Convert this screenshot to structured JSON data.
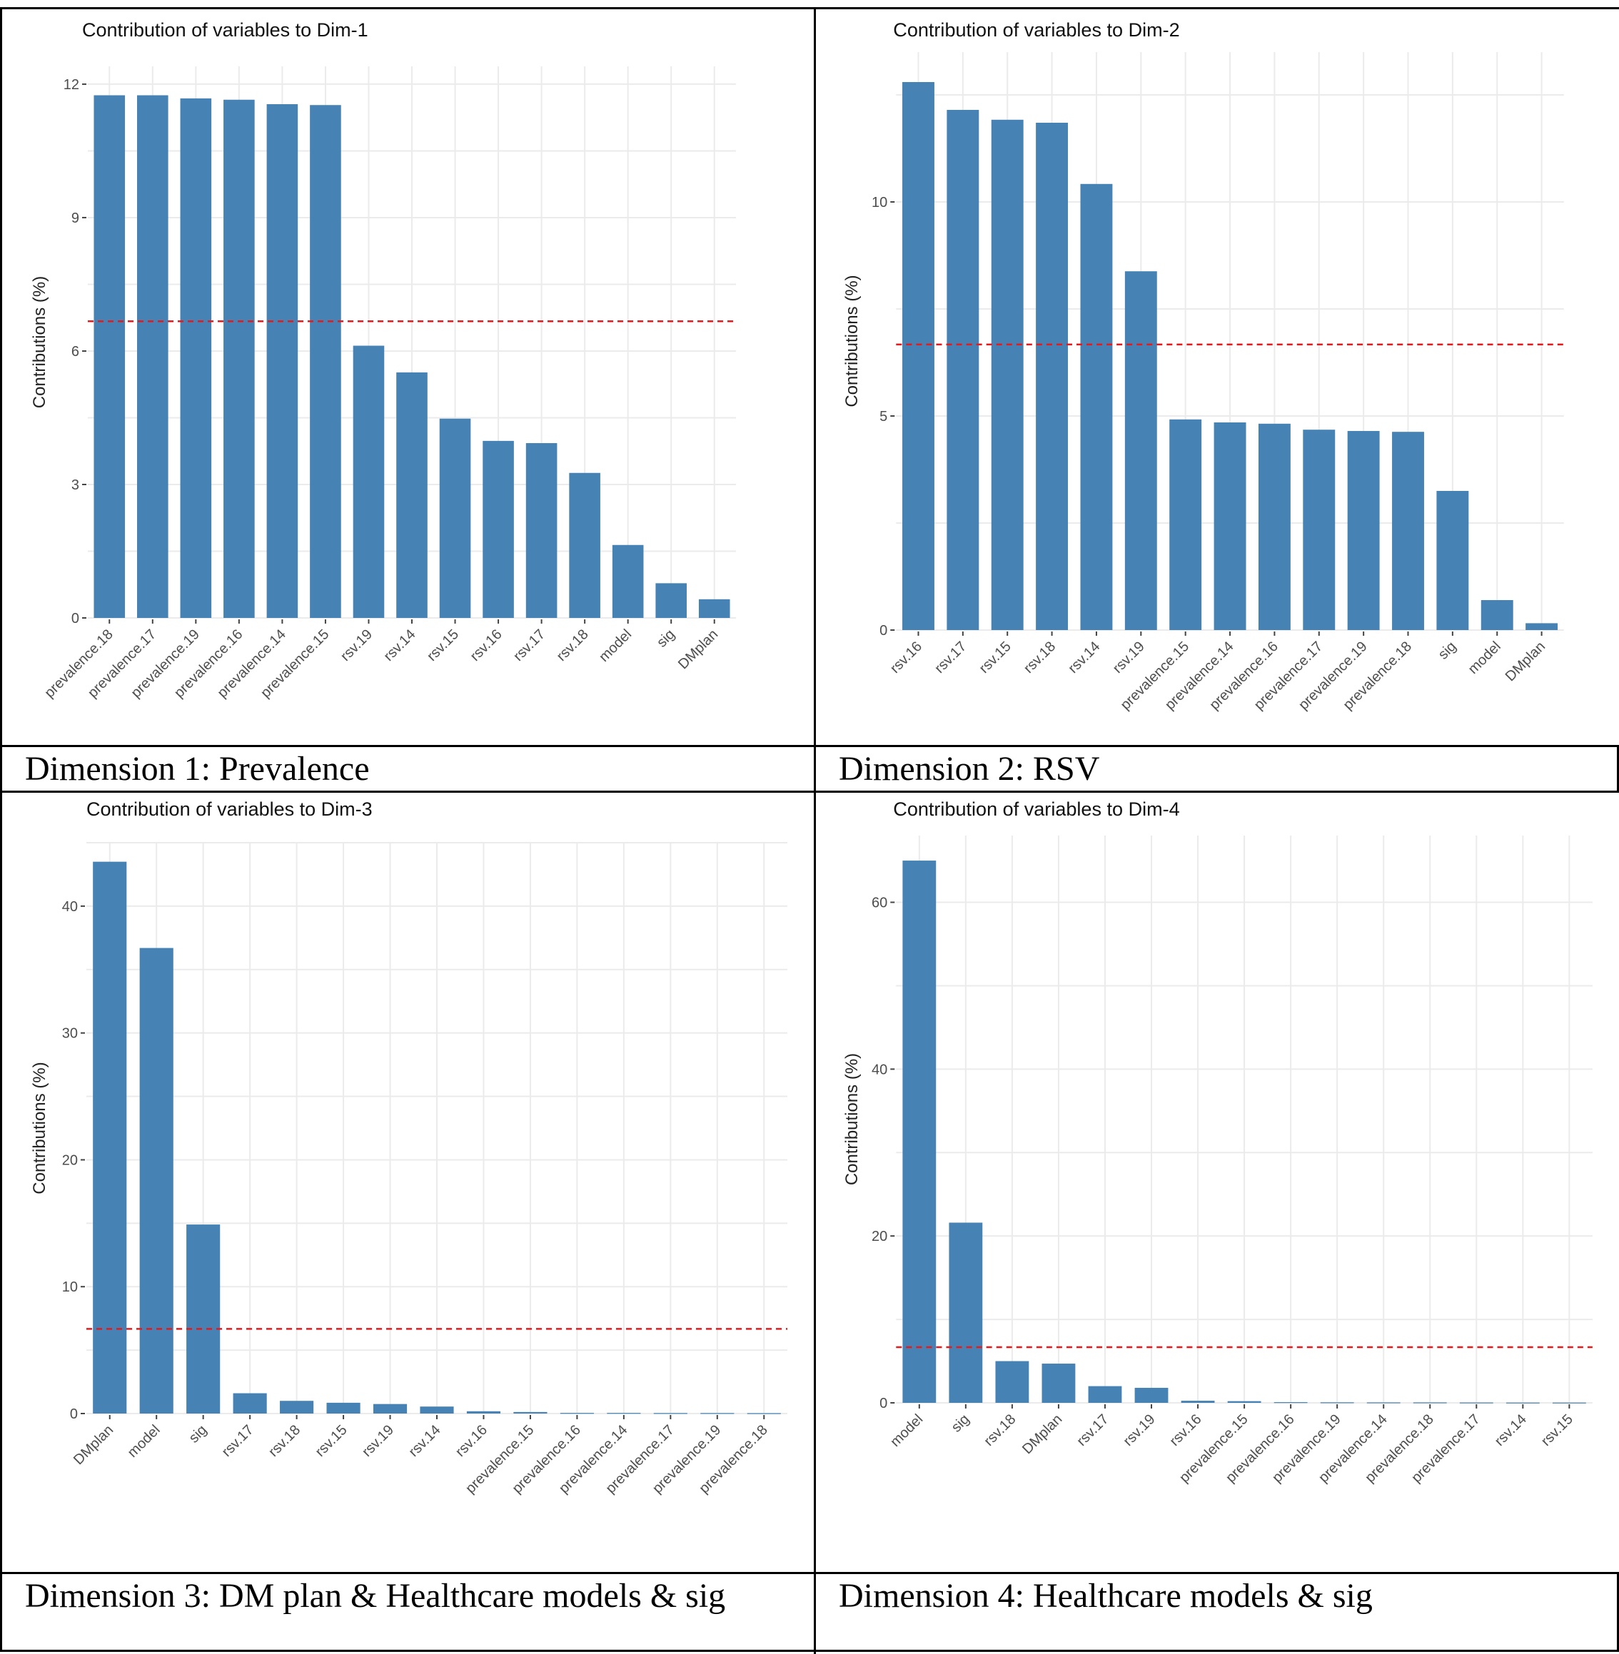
{
  "chart_data": [
    {
      "type": "bar",
      "title": "Contribution of variables to Dim-1",
      "ylabel": "Contributions (%)",
      "xlabel": "",
      "caption": "Dimension 1: Prevalence",
      "categories": [
        "prevalence.18",
        "prevalence.17",
        "prevalence.19",
        "prevalence.16",
        "prevalence.14",
        "prevalence.15",
        "rsv.19",
        "rsv.14",
        "rsv.15",
        "rsv.16",
        "rsv.17",
        "rsv.18",
        "model",
        "sig",
        "DMplan"
      ],
      "values": [
        11.75,
        11.75,
        11.68,
        11.65,
        11.55,
        11.53,
        6.12,
        5.52,
        4.48,
        3.98,
        3.93,
        3.26,
        1.64,
        0.78,
        0.42
      ],
      "yticks": [
        0,
        3,
        6,
        9,
        12
      ],
      "ylim": [
        0,
        12.4
      ],
      "reference_line": 6.67,
      "bar_color": "#4682B4",
      "reference_color": "#E41A1C"
    },
    {
      "type": "bar",
      "title": "Contribution of variables to Dim-2",
      "ylabel": "Contributions (%)",
      "xlabel": "",
      "caption": "Dimension 2: RSV",
      "categories": [
        "rsv.16",
        "rsv.17",
        "rsv.15",
        "rsv.18",
        "rsv.14",
        "rsv.19",
        "prevalence.15",
        "prevalence.14",
        "prevalence.16",
        "prevalence.17",
        "prevalence.19",
        "prevalence.18",
        "sig",
        "model",
        "DMplan"
      ],
      "values": [
        12.8,
        12.15,
        11.92,
        11.85,
        10.42,
        8.38,
        4.92,
        4.85,
        4.82,
        4.68,
        4.65,
        4.63,
        3.25,
        0.7,
        0.16
      ],
      "yticks": [
        0,
        5,
        10
      ],
      "ylim": [
        0,
        13.5
      ],
      "reference_line": 6.67,
      "bar_color": "#4682B4",
      "reference_color": "#E41A1C"
    },
    {
      "type": "bar",
      "title": "Contribution of variables to Dim-3",
      "ylabel": "Contributions (%)",
      "xlabel": "",
      "caption": "Dimension 3: DM plan & Healthcare models & sig",
      "categories": [
        "DMplan",
        "model",
        "sig",
        "rsv.17",
        "rsv.18",
        "rsv.15",
        "rsv.19",
        "rsv.14",
        "rsv.16",
        "prevalence.15",
        "prevalence.16",
        "prevalence.14",
        "prevalence.17",
        "prevalence.19",
        "prevalence.18"
      ],
      "values": [
        43.5,
        36.7,
        14.9,
        1.6,
        1.0,
        0.85,
        0.75,
        0.55,
        0.18,
        0.12,
        0.05,
        0.05,
        0.04,
        0.04,
        0.03
      ],
      "yticks": [
        0,
        10,
        20,
        30,
        40
      ],
      "ylim": [
        0,
        45
      ],
      "reference_line": 6.67,
      "bar_color": "#4682B4",
      "reference_color": "#E41A1C"
    },
    {
      "type": "bar",
      "title": "Contribution of variables to Dim-4",
      "ylabel": "Contributions (%)",
      "xlabel": "",
      "caption": "Dimension 4: Healthcare models & sig",
      "categories": [
        "model",
        "sig",
        "rsv.18",
        "DMplan",
        "rsv.17",
        "rsv.19",
        "rsv.16",
        "prevalence.15",
        "prevalence.16",
        "prevalence.19",
        "prevalence.14",
        "prevalence.18",
        "prevalence.17",
        "rsv.14",
        "rsv.15"
      ],
      "values": [
        65.0,
        21.6,
        5.0,
        4.7,
        2.0,
        1.8,
        0.25,
        0.2,
        0.08,
        0.06,
        0.05,
        0.05,
        0.04,
        0.03,
        0.03
      ],
      "yticks": [
        0,
        20,
        40,
        60
      ],
      "ylim": [
        0,
        68
      ],
      "reference_line": 6.67,
      "bar_color": "#4682B4",
      "reference_color": "#E41A1C"
    }
  ]
}
